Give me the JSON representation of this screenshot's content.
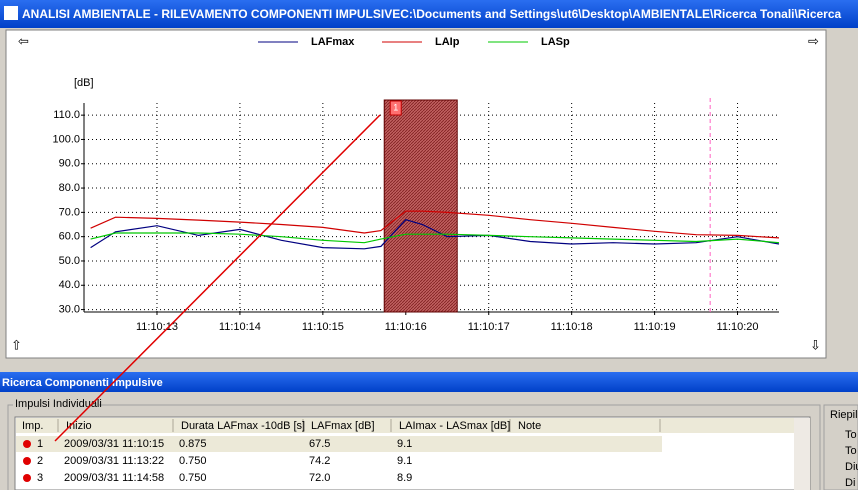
{
  "window_title": "ANALISI AMBIENTALE - RILEVAMENTO COMPONENTI IMPULSIVEC:\\Documents and Settings\\ut6\\Desktop\\AMBIENTALE\\Ricerca Tonali\\Ricerca",
  "chart_data": {
    "type": "line",
    "y_label": "[dB]",
    "x": [
      12.2,
      12.5,
      13.0,
      13.5,
      14.0,
      14.5,
      15.0,
      15.5,
      15.7,
      16.0,
      16.2,
      16.5,
      17.0,
      17.5,
      18.0,
      18.5,
      19.0,
      19.5,
      20.0,
      20.5
    ],
    "xlim": [
      12.12,
      20.5
    ],
    "xticks": [
      {
        "value": 13,
        "label": "11:10:13"
      },
      {
        "value": 14,
        "label": "11:10:14"
      },
      {
        "value": 15,
        "label": "11:10:15"
      },
      {
        "value": 16,
        "label": "11:10:16"
      },
      {
        "value": 17,
        "label": "11:10:17"
      },
      {
        "value": 18,
        "label": "11:10:18"
      },
      {
        "value": 19,
        "label": "11:10:19"
      },
      {
        "value": 20,
        "label": "11:10:20"
      }
    ],
    "ylim": [
      29,
      115
    ],
    "yticks": [
      {
        "value": 30,
        "label": "30.0"
      },
      {
        "value": 40,
        "label": "40.0"
      },
      {
        "value": 50,
        "label": "50.0"
      },
      {
        "value": 60,
        "label": "60.0"
      },
      {
        "value": 70,
        "label": "70.0"
      },
      {
        "value": 80,
        "label": "80.0"
      },
      {
        "value": 90,
        "label": "90.0"
      },
      {
        "value": 100,
        "label": "100.0"
      },
      {
        "value": 110,
        "label": "110.0"
      }
    ],
    "grid": true,
    "series": [
      {
        "name": "LAFmax",
        "color": "#000080",
        "values": [
          55.5,
          62,
          64.5,
          60.5,
          63,
          58.5,
          55.5,
          55,
          56,
          67,
          65,
          60,
          60.5,
          58,
          57,
          57.5,
          57,
          57.5,
          60,
          57
        ]
      },
      {
        "name": "LAIp",
        "color": "#d00000",
        "values": [
          63.5,
          68,
          67.5,
          66.8,
          66,
          65,
          63.8,
          61.5,
          62.5,
          70.5,
          70.5,
          70,
          68.8,
          67,
          65.5,
          63.8,
          62.2,
          60.8,
          60.5,
          59.5
        ]
      },
      {
        "name": "LASp",
        "color": "#00c800",
        "values": [
          59,
          61.5,
          61.5,
          61.5,
          61,
          60,
          58.5,
          57.5,
          59,
          61,
          61,
          61,
          60.5,
          60,
          59.5,
          59,
          58.5,
          58,
          59,
          57.5
        ]
      }
    ],
    "highlight": {
      "label": "1",
      "range": [
        15.74,
        16.62
      ]
    },
    "cursor_x": 19.67
  },
  "panel": {
    "title": "Ricerca Componenti Impulsive",
    "group": "Impulsi Individuali",
    "table": {
      "headers": [
        "Imp.",
        "Inizio",
        "Durata LAFmax -10dB [s]",
        "LAFmax [dB]",
        "LAImax - LASmax [dB]",
        "Note"
      ],
      "rows": [
        [
          "1",
          "2009/03/31 11:10:15",
          "0.875",
          "67.5",
          "9.1"
        ],
        [
          "2",
          "2009/03/31 11:13:22",
          "0.750",
          "74.2",
          "9.1"
        ],
        [
          "3",
          "2009/03/31 11:14:58",
          "0.750",
          "72.0",
          "8.9"
        ]
      ]
    },
    "side_title": "Riepil",
    "side_items": [
      "To",
      "To",
      "Diu",
      "Di"
    ]
  }
}
